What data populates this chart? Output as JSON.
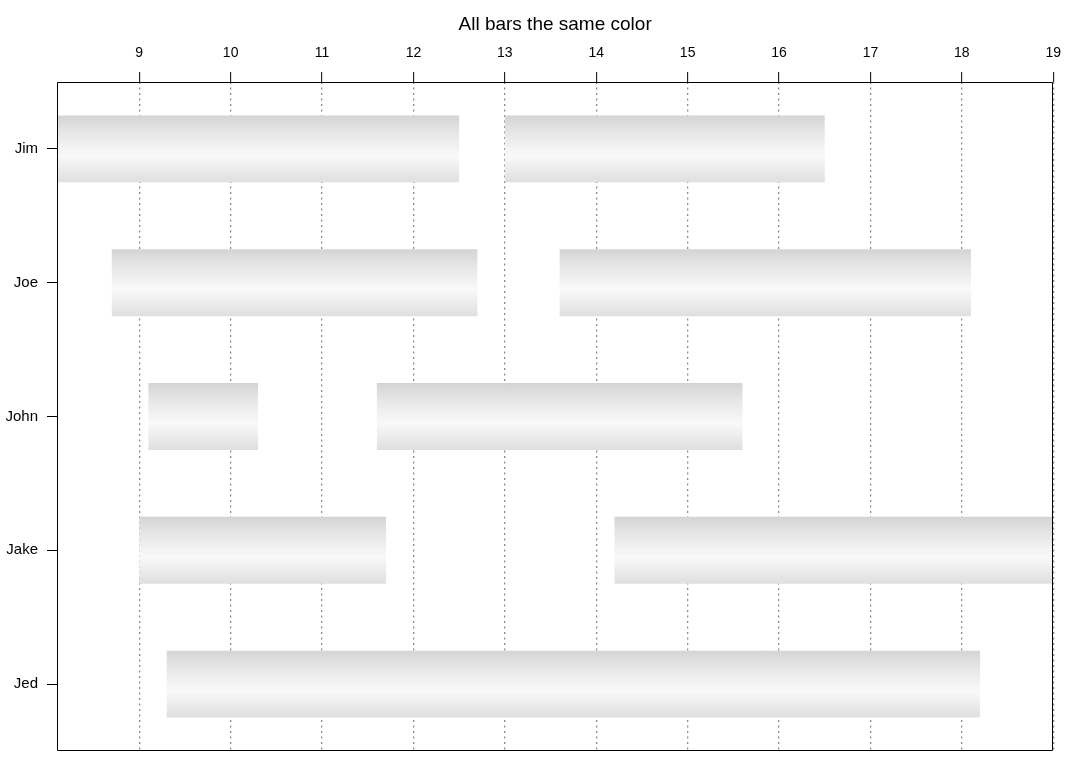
{
  "chart_data": {
    "type": "bar",
    "title": "All bars the same color",
    "orientation": "horizontal",
    "categories": [
      "Jim",
      "Joe",
      "John",
      "Jake",
      "Jed"
    ],
    "series": [
      {
        "color": "#e6e6e6",
        "base": [
          8.1,
          8.7,
          9.1,
          9.0,
          9.3
        ],
        "values": [
          4.4,
          4.0,
          1.2,
          2.7,
          8.9
        ]
      },
      {
        "color": "#e6e6e6",
        "base": [
          13,
          13.6,
          11.6,
          14.2,
          null
        ],
        "values": [
          3.5,
          4.5,
          4.0,
          4.8,
          null
        ]
      }
    ],
    "xlim": [
      8.1,
      19
    ],
    "xticks": [
      9,
      10,
      11,
      12,
      13,
      14,
      15,
      16,
      17,
      18,
      19
    ],
    "grid": "x"
  }
}
